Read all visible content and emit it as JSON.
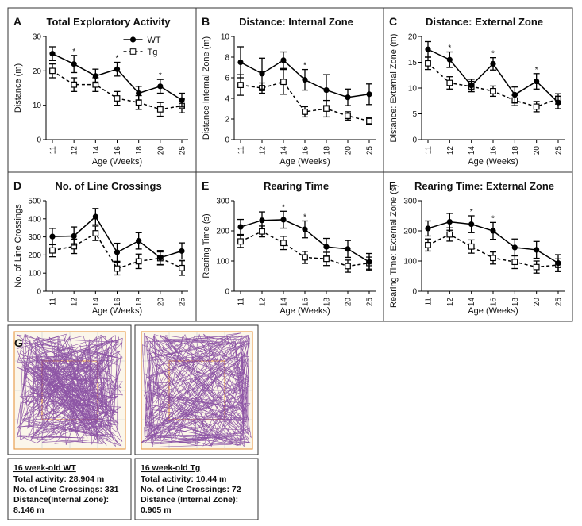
{
  "chart_data": [
    {
      "type": "line",
      "panel": "A",
      "title": "Total Exploratory Activity",
      "xlabel": "Age (Weeks)",
      "ylabel": "Distance (m)",
      "categories": [
        "11",
        "12",
        "14",
        "16",
        "18",
        "20",
        "25"
      ],
      "ylim": [
        0,
        30
      ],
      "yticks": [
        0,
        10,
        20,
        30
      ],
      "legend": "upper center",
      "series": [
        {
          "name": "WT",
          "color": "#000000",
          "marker": "circle",
          "dashed": false,
          "values": [
            25,
            22,
            18.5,
            20.5,
            13.5,
            15.5,
            11.5
          ],
          "errors": [
            2,
            2.5,
            2,
            2,
            2,
            2,
            2
          ]
        },
        {
          "name": "Tg",
          "color": "#000000",
          "marker": "square",
          "dashed": true,
          "values": [
            20,
            16,
            16,
            12,
            10.8,
            8.8,
            9.8
          ],
          "errors": [
            2,
            2,
            2,
            2,
            2,
            2,
            2
          ]
        }
      ],
      "significance": [
        null,
        "*",
        null,
        "*",
        null,
        "*",
        null
      ]
    },
    {
      "type": "line",
      "panel": "B",
      "title": "Distance: Internal Zone",
      "xlabel": "Age (Weeks)",
      "ylabel": "Distance Internal Zone (m)",
      "categories": [
        "11",
        "12",
        "14",
        "16",
        "18",
        "20",
        "25"
      ],
      "ylim": [
        0,
        10
      ],
      "yticks": [
        0,
        2,
        4,
        6,
        8,
        10
      ],
      "series": [
        {
          "color": "#000000",
          "marker": "circle",
          "dashed": false,
          "values": [
            7.5,
            6.4,
            7.7,
            5.8,
            4.8,
            4.1,
            4.4
          ],
          "errors": [
            1.5,
            1.5,
            0.8,
            1,
            1.5,
            0.8,
            1
          ]
        },
        {
          "color": "#000000",
          "marker": "square",
          "dashed": true,
          "values": [
            5.3,
            5.0,
            5.6,
            2.7,
            3.0,
            2.3,
            1.8
          ],
          "errors": [
            1,
            0.5,
            1.2,
            0.5,
            0.8,
            0.4,
            0.3
          ]
        }
      ],
      "significance": [
        null,
        null,
        null,
        "*",
        null,
        null,
        null
      ]
    },
    {
      "type": "line",
      "panel": "C",
      "title": "Distance: External Zone",
      "xlabel": "Age (Weeks)",
      "ylabel": "Distance: External Zone (m)",
      "categories": [
        "11",
        "12",
        "14",
        "16",
        "18",
        "20",
        "25"
      ],
      "ylim": [
        0,
        20
      ],
      "yticks": [
        0,
        5,
        10,
        15,
        20
      ],
      "series": [
        {
          "color": "#000000",
          "marker": "circle",
          "dashed": false,
          "values": [
            17.5,
            15.5,
            10.5,
            14.7,
            8.7,
            11.3,
            7.2
          ],
          "errors": [
            1.5,
            1.5,
            1.2,
            1.2,
            1.5,
            1.5,
            1.2
          ]
        },
        {
          "color": "#000000",
          "marker": "square",
          "dashed": true,
          "values": [
            14.8,
            11,
            10.3,
            9.4,
            7.6,
            6.4,
            7.9
          ],
          "errors": [
            1.2,
            1.2,
            1,
            1,
            1,
            1,
            1
          ]
        }
      ],
      "significance": [
        null,
        "*",
        null,
        "*",
        null,
        "*",
        null
      ]
    },
    {
      "type": "line",
      "panel": "D",
      "title": "No. of Line Crossings",
      "xlabel": "Age (Weeks)",
      "ylabel": "No. of Line Crossings",
      "categories": [
        "11",
        "12",
        "14",
        "16",
        "18",
        "20",
        "25"
      ],
      "ylim": [
        0,
        500
      ],
      "yticks": [
        0,
        100,
        200,
        300,
        400,
        500
      ],
      "series": [
        {
          "color": "#000000",
          "marker": "circle",
          "dashed": false,
          "values": [
            302,
            305,
            412,
            215,
            278,
            185,
            222
          ],
          "errors": [
            45,
            50,
            45,
            50,
            45,
            40,
            45
          ]
        },
        {
          "color": "#000000",
          "marker": "square",
          "dashed": true,
          "values": [
            225,
            248,
            320,
            125,
            165,
            182,
            128
          ],
          "errors": [
            35,
            40,
            40,
            35,
            40,
            35,
            40
          ]
        }
      ]
    },
    {
      "type": "line",
      "panel": "E",
      "title": "Rearing Time",
      "xlabel": "Age (Weeks)",
      "ylabel": "Rearing Time (s)",
      "categories": [
        "11",
        "12",
        "14",
        "16",
        "18",
        "20",
        "25"
      ],
      "ylim": [
        0,
        300
      ],
      "yticks": [
        0,
        100,
        200,
        300
      ],
      "series": [
        {
          "color": "#000000",
          "marker": "circle",
          "dashed": false,
          "values": [
            213,
            235,
            237,
            205,
            147,
            140,
            97
          ],
          "errors": [
            25,
            28,
            28,
            28,
            28,
            28,
            28
          ]
        },
        {
          "color": "#000000",
          "marker": "square",
          "dashed": true,
          "values": [
            165,
            198,
            160,
            112,
            107,
            83,
            93
          ],
          "errors": [
            20,
            18,
            22,
            20,
            22,
            20,
            20
          ]
        }
      ],
      "significance": [
        null,
        null,
        "*",
        "*",
        null,
        null,
        null
      ]
    },
    {
      "type": "line",
      "panel": "F",
      "title": "Rearing Time: External Zone",
      "xlabel": "Age (Weeks)",
      "ylabel": "Rearing Time: External Zone (s)",
      "categories": [
        "11",
        "12",
        "14",
        "16",
        "18",
        "20",
        "25"
      ],
      "ylim": [
        0,
        300
      ],
      "yticks": [
        0,
        100,
        200,
        300
      ],
      "series": [
        {
          "color": "#000000",
          "marker": "circle",
          "dashed": false,
          "values": [
            208,
            230,
            222,
            200,
            145,
            137,
            93
          ],
          "errors": [
            25,
            28,
            28,
            28,
            28,
            28,
            28
          ]
        },
        {
          "color": "#000000",
          "marker": "square",
          "dashed": true,
          "values": [
            153,
            188,
            148,
            110,
            97,
            80,
            87
          ],
          "errors": [
            20,
            22,
            22,
            20,
            22,
            20,
            20
          ]
        }
      ],
      "significance": [
        null,
        null,
        "*",
        "*",
        null,
        null,
        null
      ]
    }
  ],
  "panel_g": {
    "label": "G",
    "wt": {
      "heading": "16 week-old WT",
      "lines": [
        "Total activity: 28.904 m",
        "No. of Line Crossings: 331",
        "Distance(Internal Zone):",
        "8.146 m"
      ]
    },
    "tg": {
      "heading": "16 week-old  Tg",
      "lines": [
        "Total activity: 10.44 m",
        "No. of Line Crossings: 72",
        "Distance (Internal Zone):",
        "0.905 m"
      ]
    }
  }
}
